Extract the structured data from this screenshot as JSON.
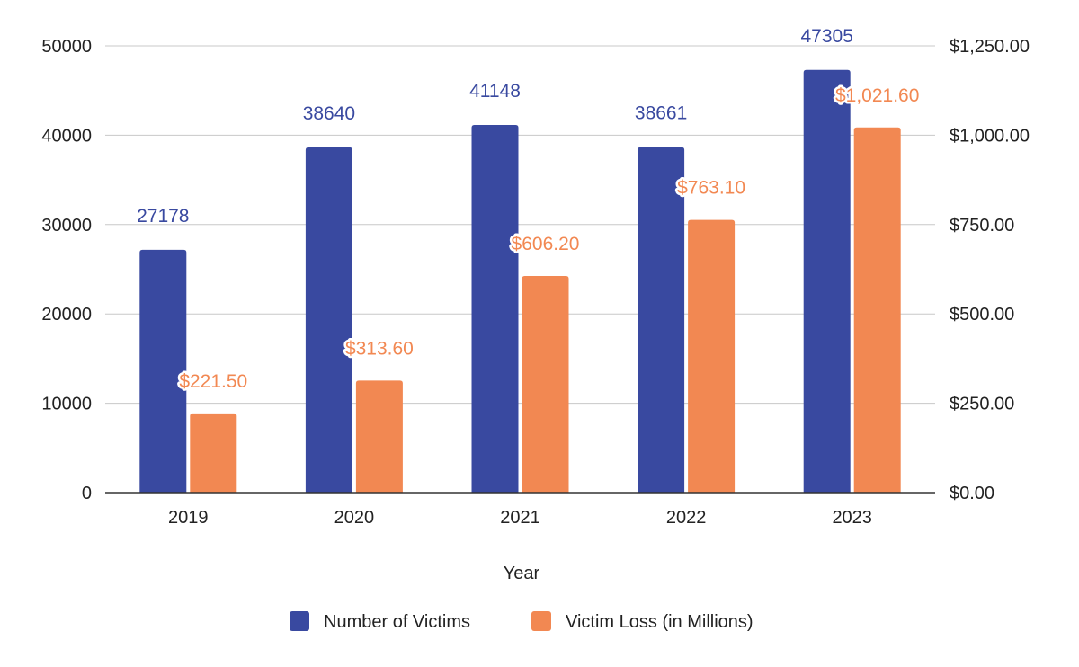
{
  "chart_data": {
    "type": "bar",
    "title": "",
    "xlabel": "Year",
    "ylabel": "",
    "y2label": "",
    "categories": [
      "2019",
      "2020",
      "2021",
      "2022",
      "2023"
    ],
    "ylim": [
      0,
      50000
    ],
    "y2lim": [
      0,
      1250
    ],
    "yticks": [
      "0",
      "10000",
      "20000",
      "30000",
      "40000",
      "50000"
    ],
    "y2ticks": [
      "$0.00",
      "$250.00",
      "$500.00",
      "$750.00",
      "$1,000.00",
      "$1,250.00"
    ],
    "grid": true,
    "legend_position": "bottom",
    "series": [
      {
        "name": "Number of Victims",
        "axis": "left",
        "color": "#3949a0",
        "values": [
          27178,
          38640,
          41148,
          38661,
          47305
        ],
        "labels": [
          "27178",
          "38640",
          "41148",
          "38661",
          "47305"
        ]
      },
      {
        "name": "Victim Loss (in Millions)",
        "axis": "right",
        "color": "#f28852",
        "values": [
          221.5,
          313.6,
          606.2,
          763.1,
          1021.6
        ],
        "labels": [
          "$221.50",
          "$313.60",
          "$606.20",
          "$763.10",
          "$1,021.60"
        ]
      }
    ]
  }
}
